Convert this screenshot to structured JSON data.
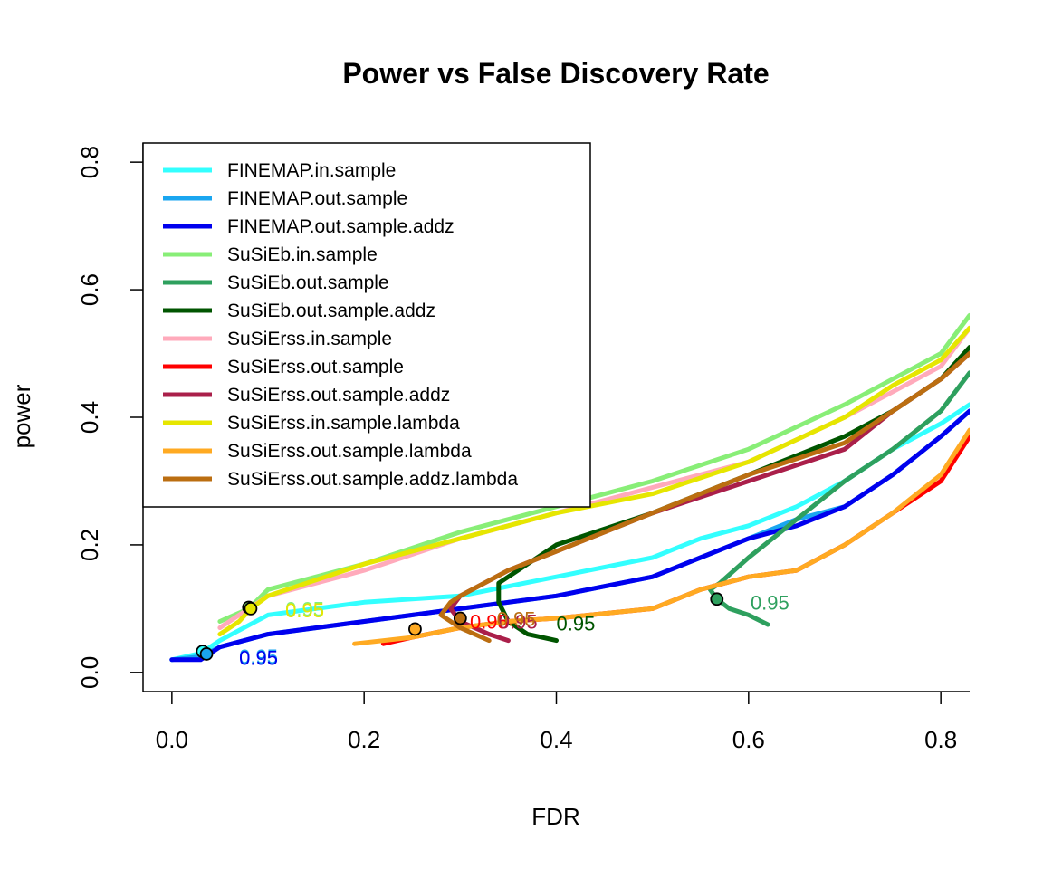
{
  "chart_data": {
    "type": "line",
    "title": "Power vs False Discovery Rate",
    "xlabel": "FDR",
    "ylabel": "power",
    "xlim": [
      -0.03,
      0.83
    ],
    "ylim": [
      -0.03,
      0.83
    ],
    "xticks": [
      0.0,
      0.2,
      0.4,
      0.6,
      0.8
    ],
    "yticks": [
      0.0,
      0.2,
      0.4,
      0.6,
      0.8
    ],
    "xtick_labels": [
      "0.0",
      "0.2",
      "0.4",
      "0.6",
      "0.8"
    ],
    "ytick_labels": [
      "0.0",
      "0.2",
      "0.4",
      "0.6",
      "0.8"
    ],
    "legend_position": "top-left",
    "series": [
      {
        "name": "FINEMAP.in.sample",
        "color": "#33ffff",
        "x": [
          0.0,
          0.03,
          0.05,
          0.1,
          0.2,
          0.3,
          0.4,
          0.5,
          0.55,
          0.6,
          0.65,
          0.7,
          0.75,
          0.8,
          0.83
        ],
        "y": [
          0.02,
          0.03,
          0.05,
          0.09,
          0.11,
          0.12,
          0.15,
          0.18,
          0.21,
          0.23,
          0.26,
          0.3,
          0.35,
          0.39,
          0.42
        ]
      },
      {
        "name": "FINEMAP.out.sample",
        "color": "#1aa6f0",
        "x": [
          0.0,
          0.03,
          0.05,
          0.1,
          0.2,
          0.3,
          0.4,
          0.5,
          0.55,
          0.6,
          0.65,
          0.7,
          0.75,
          0.8,
          0.83
        ],
        "y": [
          0.02,
          0.025,
          0.04,
          0.06,
          0.08,
          0.1,
          0.12,
          0.15,
          0.18,
          0.21,
          0.24,
          0.26,
          0.31,
          0.37,
          0.41
        ]
      },
      {
        "name": "FINEMAP.out.sample.addz",
        "color": "#0000ee",
        "x": [
          0.0,
          0.03,
          0.05,
          0.1,
          0.2,
          0.3,
          0.4,
          0.5,
          0.55,
          0.6,
          0.65,
          0.7,
          0.75,
          0.8,
          0.83
        ],
        "y": [
          0.02,
          0.02,
          0.04,
          0.06,
          0.08,
          0.1,
          0.12,
          0.15,
          0.18,
          0.21,
          0.23,
          0.26,
          0.31,
          0.37,
          0.41
        ]
      },
      {
        "name": "SuSiEb.in.sample",
        "color": "#88ee77",
        "x": [
          0.05,
          0.08,
          0.1,
          0.2,
          0.3,
          0.4,
          0.5,
          0.6,
          0.7,
          0.75,
          0.8,
          0.83
        ],
        "y": [
          0.08,
          0.1,
          0.13,
          0.17,
          0.22,
          0.26,
          0.3,
          0.35,
          0.42,
          0.46,
          0.5,
          0.56
        ]
      },
      {
        "name": "SuSiEb.out.sample",
        "color": "#2ea05e",
        "x": [
          0.62,
          0.6,
          0.58,
          0.567,
          0.56,
          0.57,
          0.6,
          0.65,
          0.7,
          0.75,
          0.8,
          0.83
        ],
        "y": [
          0.075,
          0.09,
          0.1,
          0.115,
          0.13,
          0.14,
          0.18,
          0.24,
          0.3,
          0.35,
          0.41,
          0.47
        ]
      },
      {
        "name": "SuSiEb.out.sample.addz",
        "color": "#005500",
        "x": [
          0.4,
          0.37,
          0.35,
          0.34,
          0.34,
          0.35,
          0.4,
          0.5,
          0.6,
          0.7,
          0.75,
          0.8,
          0.83
        ],
        "y": [
          0.05,
          0.06,
          0.08,
          0.11,
          0.14,
          0.15,
          0.2,
          0.25,
          0.31,
          0.37,
          0.41,
          0.46,
          0.51
        ]
      },
      {
        "name": "SuSiErss.in.sample",
        "color": "#ffaabb",
        "x": [
          0.05,
          0.08,
          0.1,
          0.2,
          0.3,
          0.4,
          0.5,
          0.6,
          0.7,
          0.75,
          0.8,
          0.83
        ],
        "y": [
          0.07,
          0.1,
          0.12,
          0.16,
          0.21,
          0.25,
          0.29,
          0.33,
          0.4,
          0.44,
          0.48,
          0.54
        ]
      },
      {
        "name": "SuSiErss.out.sample",
        "color": "#ff0000",
        "x": [
          0.22,
          0.25,
          0.3,
          0.35,
          0.4,
          0.5,
          0.55,
          0.6,
          0.65,
          0.7,
          0.75,
          0.8,
          0.83
        ],
        "y": [
          0.045,
          0.055,
          0.07,
          0.08,
          0.085,
          0.1,
          0.13,
          0.15,
          0.16,
          0.2,
          0.25,
          0.3,
          0.37
        ]
      },
      {
        "name": "SuSiErss.out.sample.addz",
        "color": "#aa1f4a",
        "x": [
          0.35,
          0.33,
          0.3,
          0.29,
          0.3,
          0.35,
          0.4,
          0.5,
          0.6,
          0.7,
          0.75,
          0.8,
          0.83
        ],
        "y": [
          0.05,
          0.06,
          0.08,
          0.1,
          0.12,
          0.16,
          0.19,
          0.25,
          0.3,
          0.35,
          0.41,
          0.46,
          0.5
        ]
      },
      {
        "name": "SuSiErss.in.sample.lambda",
        "color": "#e6e600",
        "x": [
          0.05,
          0.07,
          0.082,
          0.1,
          0.2,
          0.3,
          0.4,
          0.5,
          0.6,
          0.7,
          0.75,
          0.8,
          0.83
        ],
        "y": [
          0.06,
          0.08,
          0.1,
          0.12,
          0.17,
          0.21,
          0.25,
          0.28,
          0.33,
          0.4,
          0.45,
          0.49,
          0.54
        ]
      },
      {
        "name": "SuSiErss.out.sample.lambda",
        "color": "#ffaa22",
        "x": [
          0.19,
          0.25,
          0.3,
          0.35,
          0.4,
          0.5,
          0.55,
          0.6,
          0.65,
          0.7,
          0.75,
          0.8,
          0.83
        ],
        "y": [
          0.045,
          0.055,
          0.07,
          0.08,
          0.085,
          0.1,
          0.13,
          0.15,
          0.16,
          0.2,
          0.25,
          0.31,
          0.38
        ]
      },
      {
        "name": "SuSiErss.out.sample.addz.lambda",
        "color": "#bb6e11",
        "x": [
          0.33,
          0.3,
          0.28,
          0.29,
          0.3,
          0.35,
          0.4,
          0.5,
          0.6,
          0.7,
          0.75,
          0.8,
          0.83
        ],
        "y": [
          0.05,
          0.07,
          0.09,
          0.11,
          0.12,
          0.16,
          0.19,
          0.25,
          0.31,
          0.36,
          0.41,
          0.46,
          0.5
        ]
      }
    ],
    "points": [
      {
        "x": 0.032,
        "y": 0.033,
        "fill": "#33ffff"
      },
      {
        "x": 0.036,
        "y": 0.029,
        "fill": "#1aa6f0"
      },
      {
        "x": 0.08,
        "y": 0.102,
        "fill": "#88ee77"
      },
      {
        "x": 0.082,
        "y": 0.1,
        "fill": "#e6e600"
      },
      {
        "x": 0.253,
        "y": 0.068,
        "fill": "#ffaa22"
      },
      {
        "x": 0.3,
        "y": 0.085,
        "fill": "#bb6e11"
      },
      {
        "x": 0.567,
        "y": 0.115,
        "fill": "#2ea05e"
      }
    ],
    "annotations": [
      {
        "text": "0.95",
        "x": 0.07,
        "y": 0.025,
        "color": "#1aa6f0"
      },
      {
        "text": "0.95",
        "x": 0.07,
        "y": 0.023,
        "color": "#0000ee"
      },
      {
        "text": "0.95",
        "x": 0.118,
        "y": 0.1,
        "color": "#88ee77"
      },
      {
        "text": "0.95",
        "x": 0.118,
        "y": 0.098,
        "color": "#e6e600"
      },
      {
        "text": "0.95",
        "x": 0.31,
        "y": 0.08,
        "color": "#ff0000"
      },
      {
        "text": "0.95",
        "x": 0.34,
        "y": 0.08,
        "color": "#aa1f4a"
      },
      {
        "text": "0.95",
        "x": 0.338,
        "y": 0.084,
        "color": "#bb6e11"
      },
      {
        "text": "0.95",
        "x": 0.4,
        "y": 0.077,
        "color": "#005500"
      },
      {
        "text": "0.95",
        "x": 0.602,
        "y": 0.11,
        "color": "#2ea05e"
      }
    ]
  }
}
